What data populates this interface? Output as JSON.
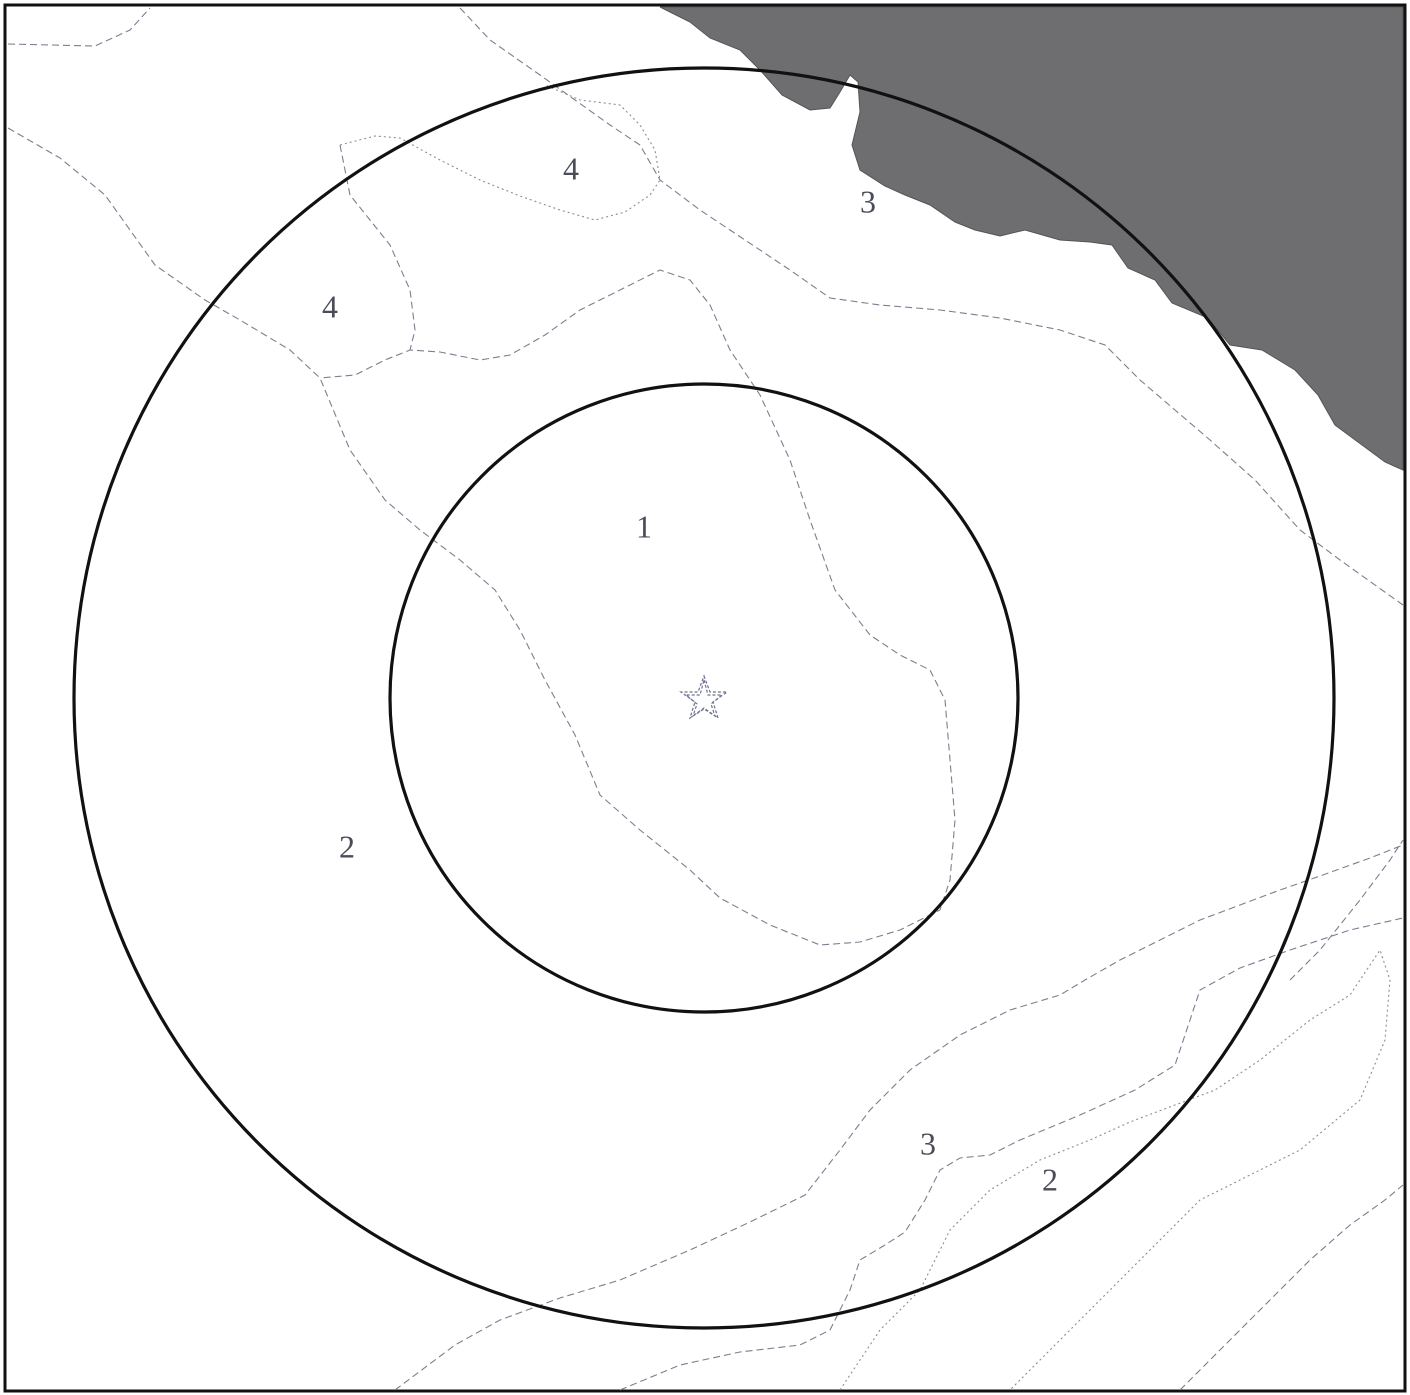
{
  "map": {
    "labels": {
      "zone_center": "1",
      "zone_west": "2",
      "zone_south_east": "2",
      "zone_south": "3",
      "zone_north_east": "3",
      "zone_north_a": "4",
      "zone_north_b": "4"
    },
    "icons": {
      "center_marker": "star-icon"
    },
    "colors": {
      "land": "#6e6e70",
      "rings": "#111111",
      "boundaries": "#7c7f8f"
    }
  }
}
